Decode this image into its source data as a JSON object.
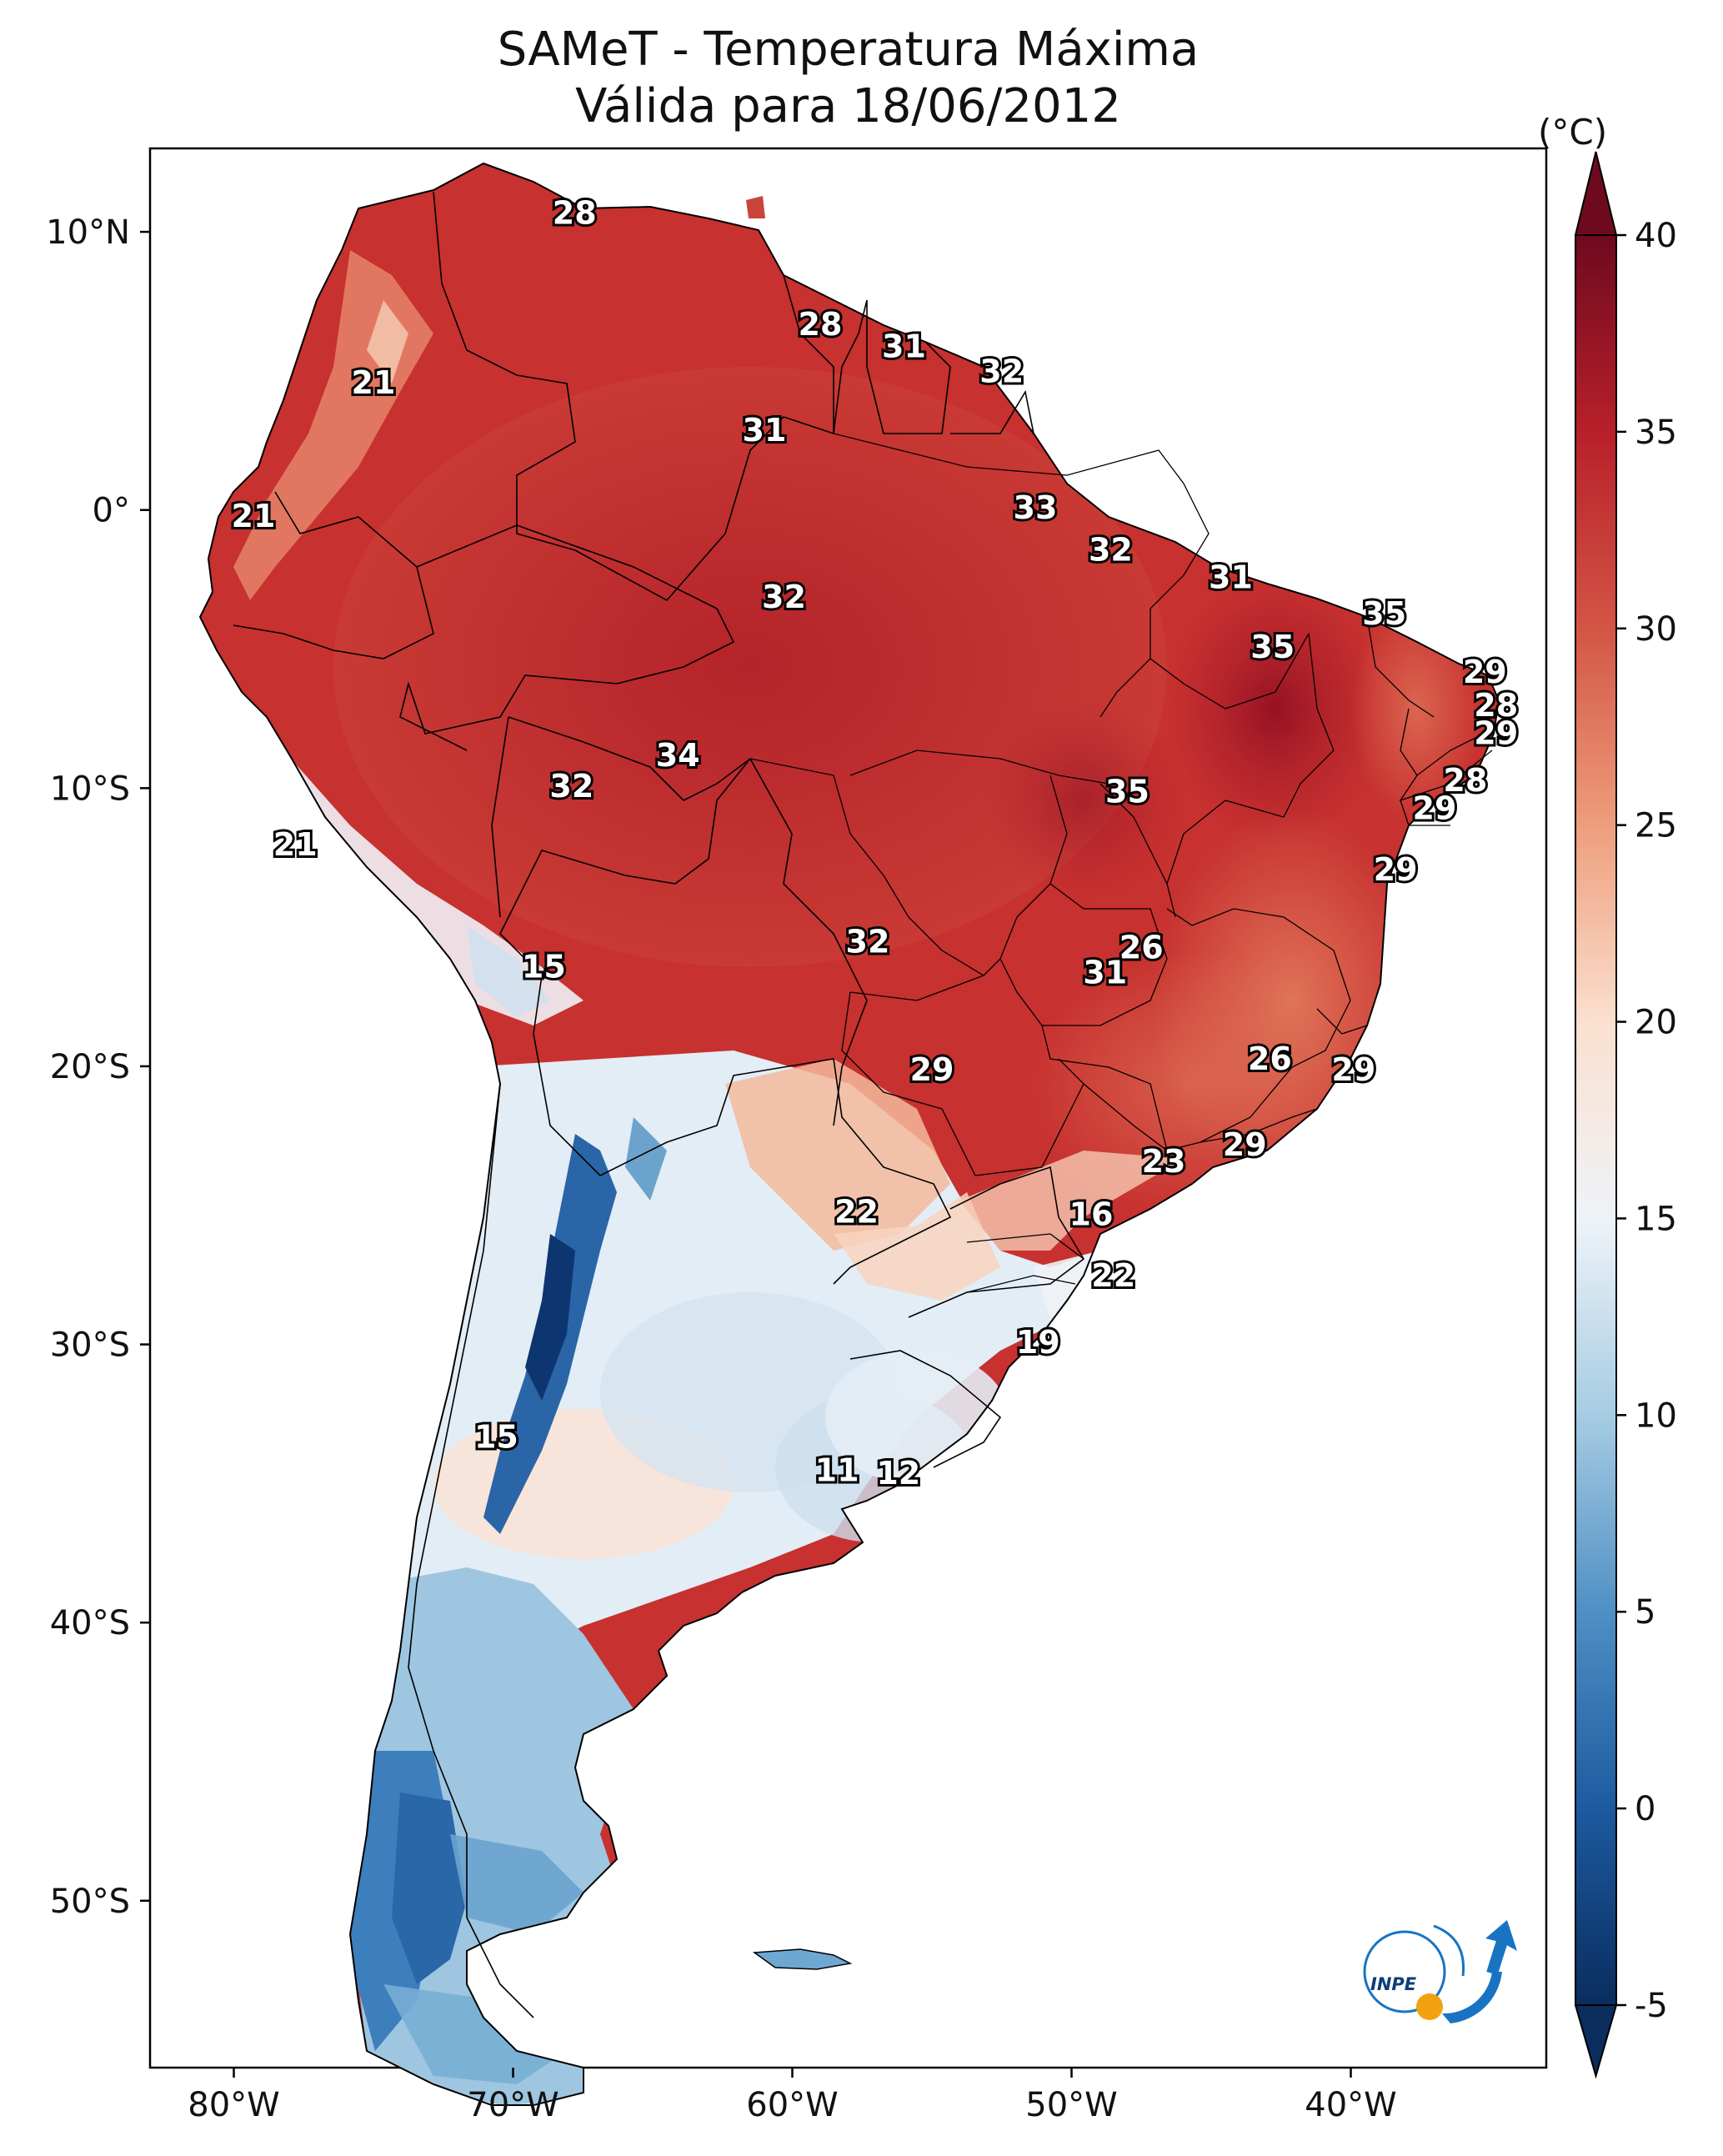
{
  "title_line1": "SAMeT - Temperatura Máxima",
  "title_line2": "Válida para 18/06/2012",
  "colorbar": {
    "unit": "(°C)",
    "min": -5,
    "max": 40,
    "ticks": [
      "-5",
      "0",
      "5",
      "10",
      "15",
      "20",
      "25",
      "30",
      "35",
      "40"
    ],
    "colors": [
      "#0a2d5e",
      "#1d5aa0",
      "#4f8fc4",
      "#a6cce3",
      "#eef3f8",
      "#fbe0cf",
      "#ee9e7d",
      "#d35545",
      "#b8202a",
      "#6e0a1e"
    ]
  },
  "axes": {
    "lon_ticks": [
      "80°W",
      "70°W",
      "60°W",
      "50°W",
      "40°W"
    ],
    "lat_ticks": [
      "10°N",
      "0°",
      "10°S",
      "20°S",
      "30°S",
      "40°S",
      "50°S"
    ]
  },
  "extent": {
    "lon_min": -83,
    "lon_max": -33,
    "lat_min": -56,
    "lat_max": 13
  },
  "labels": [
    {
      "text": "28",
      "lon": -67.8,
      "lat": 10.6
    },
    {
      "text": "21",
      "lon": -75.0,
      "lat": 4.5
    },
    {
      "text": "28",
      "lon": -59.0,
      "lat": 6.6
    },
    {
      "text": "31",
      "lon": -56.0,
      "lat": 5.8
    },
    {
      "text": "32",
      "lon": -52.5,
      "lat": 4.9
    },
    {
      "text": "31",
      "lon": -61.0,
      "lat": 2.8
    },
    {
      "text": "21",
      "lon": -79.3,
      "lat": -0.3
    },
    {
      "text": "33",
      "lon": -51.3,
      "lat": 0.0
    },
    {
      "text": "32",
      "lon": -48.6,
      "lat": -1.5
    },
    {
      "text": "31",
      "lon": -44.3,
      "lat": -2.5
    },
    {
      "text": "32",
      "lon": -60.3,
      "lat": -3.2
    },
    {
      "text": "35",
      "lon": -38.8,
      "lat": -3.8
    },
    {
      "text": "35",
      "lon": -42.8,
      "lat": -5.0
    },
    {
      "text": "29",
      "lon": -35.2,
      "lat": -5.9
    },
    {
      "text": "28",
      "lon": -34.8,
      "lat": -7.1
    },
    {
      "text": "29",
      "lon": -34.8,
      "lat": -8.1
    },
    {
      "text": "34",
      "lon": -64.1,
      "lat": -8.9
    },
    {
      "text": "28",
      "lon": -35.9,
      "lat": -9.8
    },
    {
      "text": "32",
      "lon": -67.9,
      "lat": -10.0
    },
    {
      "text": "35",
      "lon": -48.0,
      "lat": -10.2
    },
    {
      "text": "29",
      "lon": -37.0,
      "lat": -10.8
    },
    {
      "text": "21",
      "lon": -77.8,
      "lat": -12.1
    },
    {
      "text": "29",
      "lon": -38.4,
      "lat": -13.0
    },
    {
      "text": "26",
      "lon": -47.5,
      "lat": -15.8
    },
    {
      "text": "32",
      "lon": -57.3,
      "lat": -15.6
    },
    {
      "text": "31",
      "lon": -48.8,
      "lat": -16.7
    },
    {
      "text": "15",
      "lon": -68.9,
      "lat": -16.5
    },
    {
      "text": "26",
      "lon": -42.9,
      "lat": -19.8
    },
    {
      "text": "29",
      "lon": -55.0,
      "lat": -20.2
    },
    {
      "text": "29",
      "lon": -39.9,
      "lat": -20.2
    },
    {
      "text": "29",
      "lon": -43.8,
      "lat": -22.9
    },
    {
      "text": "23",
      "lon": -46.7,
      "lat": -23.5
    },
    {
      "text": "22",
      "lon": -57.7,
      "lat": -25.3
    },
    {
      "text": "16",
      "lon": -49.3,
      "lat": -25.4
    },
    {
      "text": "22",
      "lon": -48.5,
      "lat": -27.6
    },
    {
      "text": "19",
      "lon": -51.2,
      "lat": -30.0
    },
    {
      "text": "15",
      "lon": -70.6,
      "lat": -33.4
    },
    {
      "text": "11",
      "lon": -58.4,
      "lat": -34.6
    },
    {
      "text": "12",
      "lon": -56.2,
      "lat": -34.7
    }
  ],
  "logo": {
    "text": "INPE"
  }
}
